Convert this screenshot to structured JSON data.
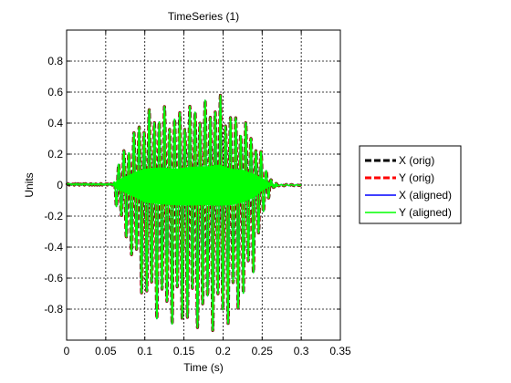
{
  "window_title": "",
  "chart_data": {
    "type": "line",
    "title": "TimeSeries (1)",
    "xlabel": "Time (s)",
    "ylabel": "Units",
    "xlim": [
      0,
      0.35
    ],
    "ylim": [
      -1.0,
      1.0
    ],
    "grid": true,
    "grid_style": "dashed",
    "legend_position": "outside-right",
    "x_ticks": [
      0,
      0.05,
      0.1,
      0.15,
      0.2,
      0.25,
      0.3,
      0.35
    ],
    "x_tick_labels": [
      "0",
      "0.05",
      "0.1",
      "0.15",
      "0.2",
      "0.25",
      "0.3",
      "0.35"
    ],
    "y_ticks": [
      0.8,
      0.6,
      0.4,
      0.2,
      0,
      -0.2,
      -0.4,
      -0.6,
      -0.8
    ],
    "y_tick_labels": [
      "0.8",
      "0.6",
      "0.4",
      "0.2",
      "0",
      "-0.2",
      "-0.4",
      "-0.6",
      "-0.8"
    ],
    "signal_envelope": {
      "x": [
        0,
        0.06,
        0.065,
        0.075,
        0.09,
        0.1,
        0.12,
        0.14,
        0.16,
        0.18,
        0.195,
        0.21,
        0.225,
        0.24,
        0.25,
        0.26,
        0.265,
        0.27,
        0.35
      ],
      "pos": [
        0.01,
        0.01,
        0.14,
        0.25,
        0.4,
        0.48,
        0.52,
        0.48,
        0.54,
        0.55,
        0.6,
        0.48,
        0.45,
        0.32,
        0.2,
        0.05,
        0.02,
        0.005,
        0.0
      ],
      "neg": [
        0.01,
        0.01,
        -0.2,
        -0.35,
        -0.6,
        -0.8,
        -0.88,
        -0.93,
        -0.94,
        -0.93,
        -0.95,
        -0.92,
        -0.8,
        -0.55,
        -0.25,
        -0.05,
        -0.02,
        -0.005,
        0.0
      ]
    },
    "series": [
      {
        "name": "X (orig)",
        "color": "#000000",
        "style": "dashed"
      },
      {
        "name": "Y (orig)",
        "color": "#ff0000",
        "style": "dashed"
      },
      {
        "name": "X (aligned)",
        "color": "#0000ff",
        "style": "solid"
      },
      {
        "name": "Y (aligned)",
        "color": "#00ff00",
        "style": "solid"
      }
    ]
  }
}
